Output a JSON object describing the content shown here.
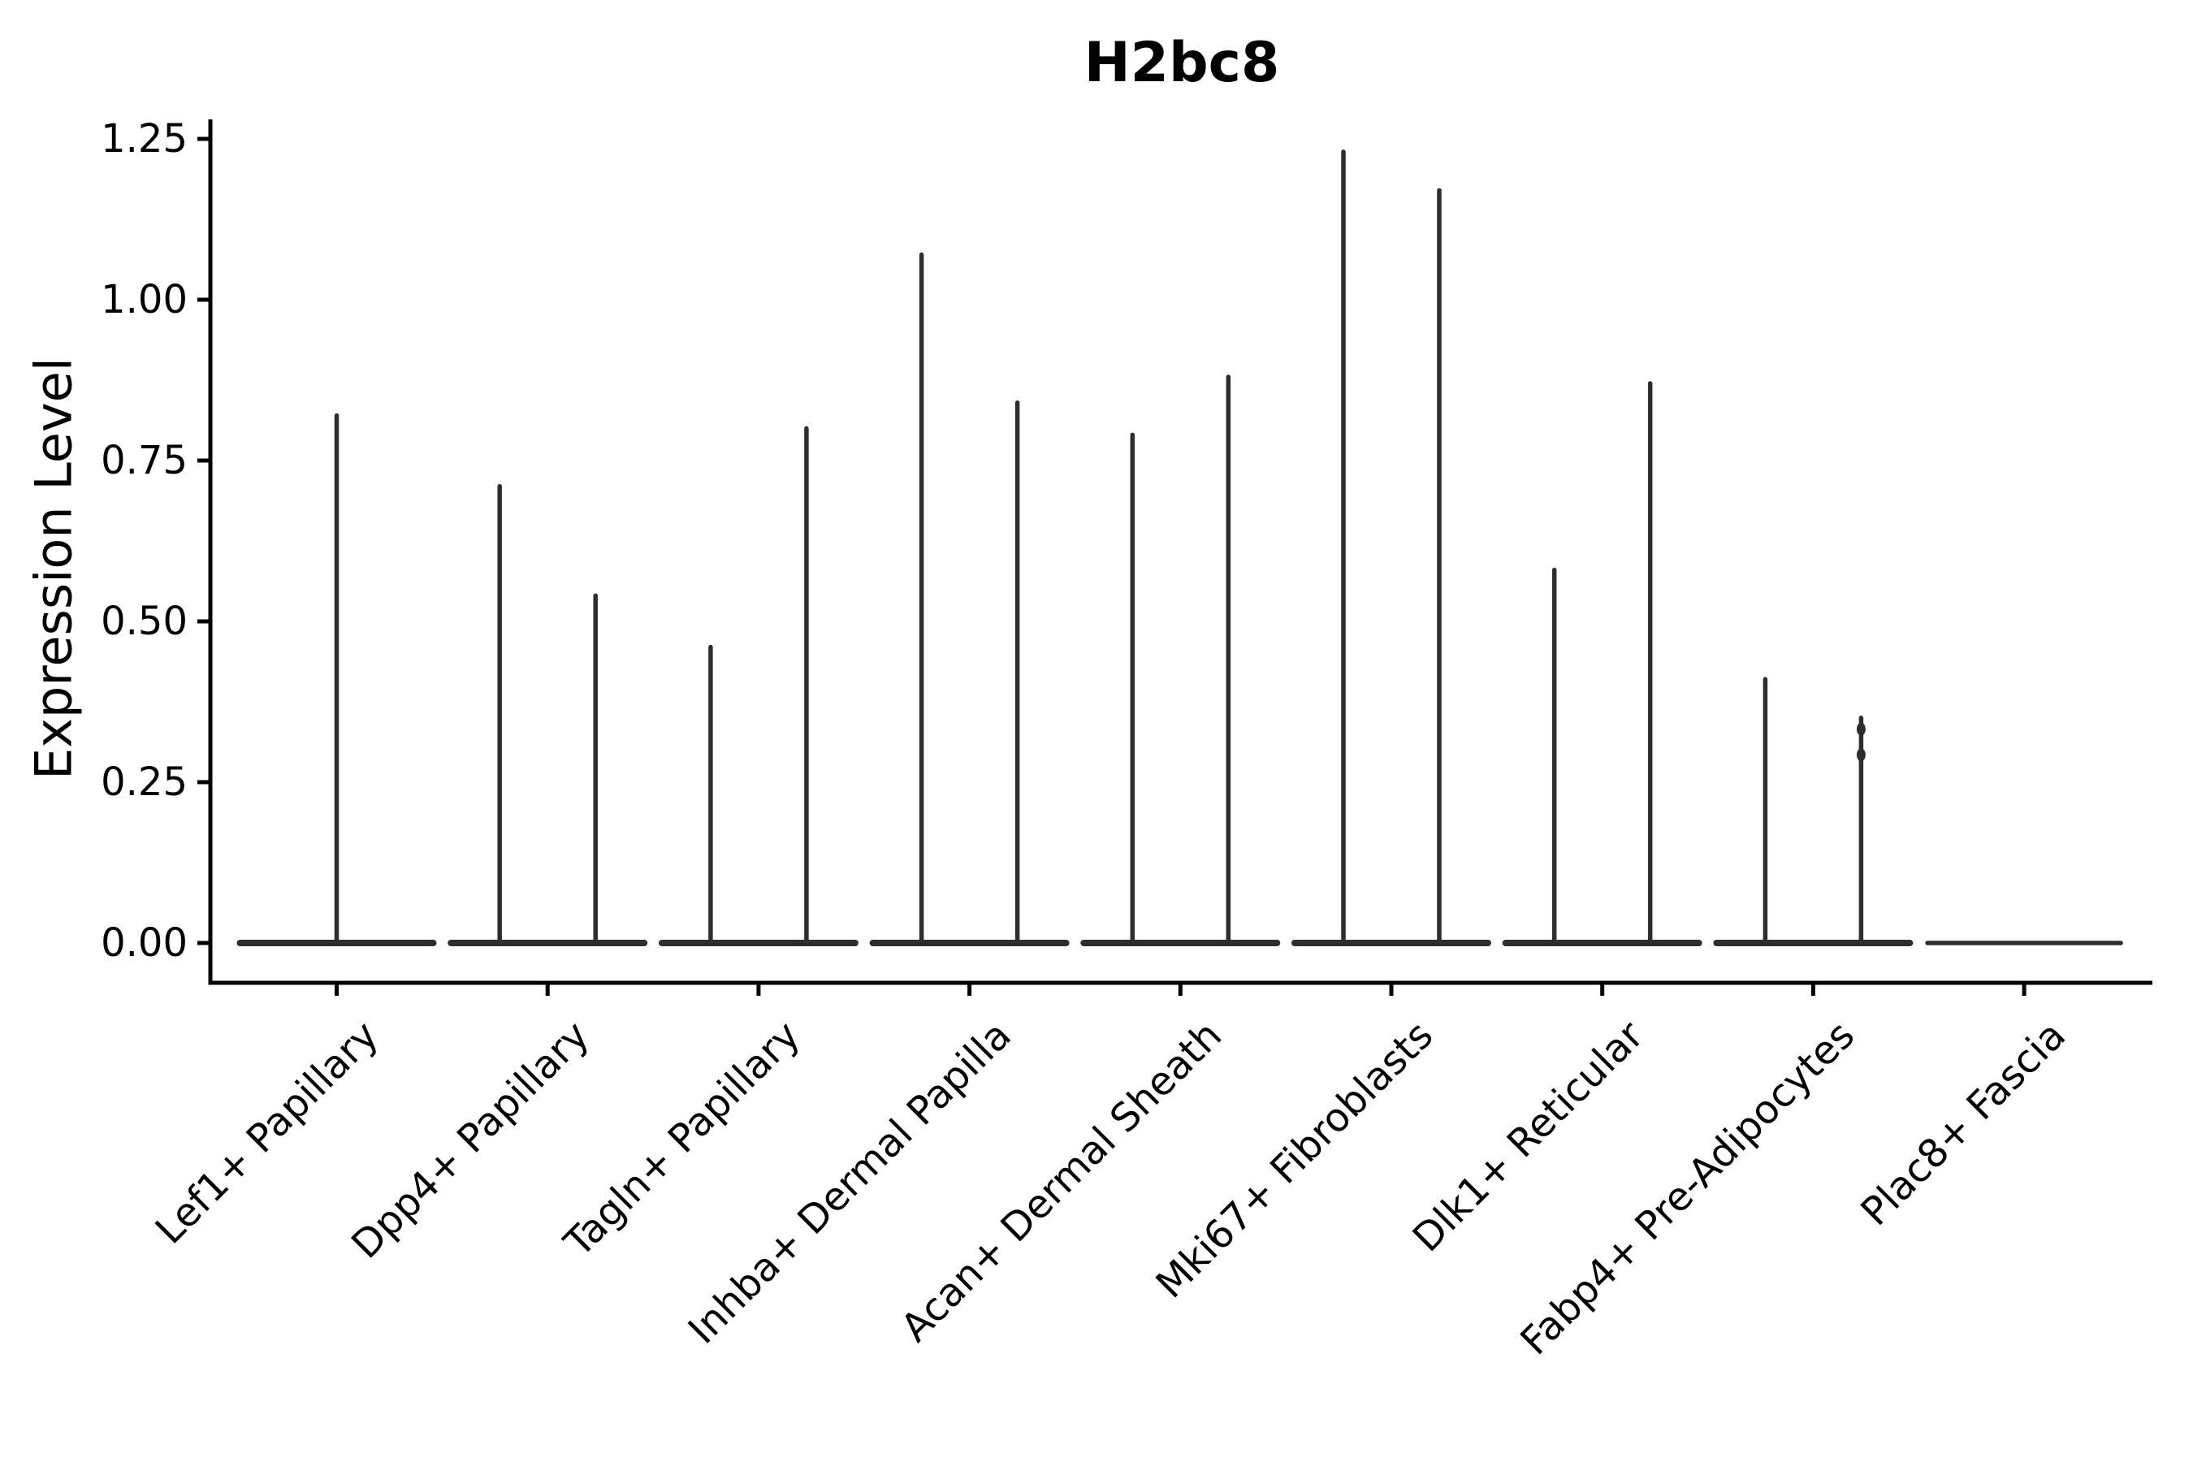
{
  "figure": {
    "background": "#ffffff"
  },
  "chart_data": {
    "type": "violin",
    "title": "H2bc8",
    "xlabel": "",
    "ylabel": "Expression Level",
    "ylim": [
      -0.06,
      1.28
    ],
    "grid": false,
    "legend": null,
    "ytick_labels": [
      "0.00",
      "0.25",
      "0.50",
      "0.75",
      "1.00",
      "1.25"
    ],
    "ytick_values": [
      0.0,
      0.25,
      0.5,
      0.75,
      1.0,
      1.25
    ],
    "categories": [
      "Lef1+ Papillary",
      "Dpp4+ Papillary",
      "Tagln+ Papillary",
      "Inhba+ Dermal Papilla",
      "Acan+ Dermal Sheath",
      "Mki67+ Fibroblasts",
      "Dlk1+ Reticular",
      "Fabp4+ Pre-Adipocytes",
      "Plac8+ Fascia"
    ],
    "violins": [
      {
        "category": "Lef1+ Papillary",
        "expression_peaks": [
          0.82
        ]
      },
      {
        "category": "Dpp4+ Papillary",
        "expression_peaks": [
          0.71,
          0.54
        ]
      },
      {
        "category": "Tagln+ Papillary",
        "expression_peaks": [
          0.46,
          0.8
        ]
      },
      {
        "category": "Inhba+ Dermal Papilla",
        "expression_peaks": [
          1.07,
          0.84
        ]
      },
      {
        "category": "Acan+ Dermal Sheath",
        "expression_peaks": [
          0.79,
          0.88
        ]
      },
      {
        "category": "Mki67+ Fibroblasts",
        "expression_peaks": [
          1.23,
          1.17
        ]
      },
      {
        "category": "Dlk1+ Reticular",
        "expression_peaks": [
          0.58,
          0.87
        ]
      },
      {
        "category": "Fabp4+ Pre-Adipocytes",
        "expression_peaks": [
          0.41,
          0.35
        ],
        "density_knobs": [
          0.34,
          0.3
        ]
      },
      {
        "category": "Plac8+ Fascia",
        "expression_peaks": []
      }
    ],
    "colors": {
      "violin": "#2e2e2e",
      "axis": "#000000",
      "text": "#000000"
    }
  }
}
